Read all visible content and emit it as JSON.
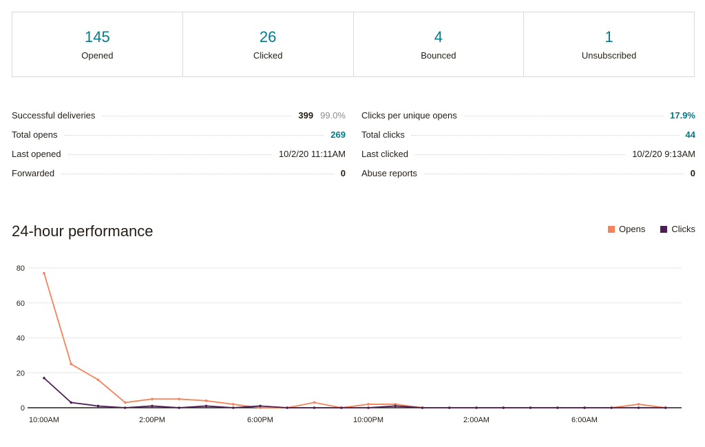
{
  "summary": [
    {
      "value": "145",
      "label": "Opened"
    },
    {
      "value": "26",
      "label": "Clicked"
    },
    {
      "value": "4",
      "label": "Bounced"
    },
    {
      "value": "1",
      "label": "Unsubscribed"
    }
  ],
  "details_left": [
    {
      "label": "Successful deliveries",
      "value": "399",
      "pct": "99.0%"
    },
    {
      "label": "Total opens",
      "value": "269"
    },
    {
      "label": "Last opened",
      "value": "10/2/20 11:11AM"
    },
    {
      "label": "Forwarded",
      "value": "0"
    }
  ],
  "details_right": [
    {
      "label": "Clicks per unique opens",
      "value": "17.9%"
    },
    {
      "label": "Total clicks",
      "value": "44"
    },
    {
      "label": "Last clicked",
      "value": "10/2/20 9:13AM"
    },
    {
      "label": "Abuse reports",
      "value": "0"
    }
  ],
  "performance": {
    "title": "24-hour performance",
    "legend": [
      {
        "label": "Opens",
        "color": "#f4835a"
      },
      {
        "label": "Clicks",
        "color": "#4d1e55"
      }
    ]
  },
  "chart_data": {
    "type": "line",
    "x": [
      "10:00AM",
      "11:00AM",
      "12:00PM",
      "1:00PM",
      "2:00PM",
      "3:00PM",
      "4:00PM",
      "5:00PM",
      "6:00PM",
      "7:00PM",
      "8:00PM",
      "9:00PM",
      "10:00PM",
      "11:00PM",
      "12:00AM",
      "1:00AM",
      "2:00AM",
      "3:00AM",
      "4:00AM",
      "5:00AM",
      "6:00AM",
      "7:00AM",
      "8:00AM",
      "9:00AM"
    ],
    "x_tick_labels": [
      "10:00AM",
      "2:00PM",
      "6:00PM",
      "10:00PM",
      "2:00AM",
      "6:00AM"
    ],
    "y_ticks": [
      0,
      20,
      40,
      60,
      80
    ],
    "ylim": [
      0,
      80
    ],
    "series": [
      {
        "name": "Opens",
        "color": "#f4835a",
        "values": [
          77,
          25,
          16,
          3,
          5,
          5,
          4,
          2,
          0,
          0,
          3,
          0,
          2,
          2,
          0,
          0,
          0,
          0,
          0,
          0,
          0,
          0,
          2,
          0
        ]
      },
      {
        "name": "Clicks",
        "color": "#4d1e55",
        "values": [
          17,
          3,
          1,
          0,
          1,
          0,
          1,
          0,
          1,
          0,
          0,
          0,
          0,
          1,
          0,
          0,
          0,
          0,
          0,
          0,
          0,
          0,
          0,
          0
        ]
      }
    ],
    "grid": true
  }
}
